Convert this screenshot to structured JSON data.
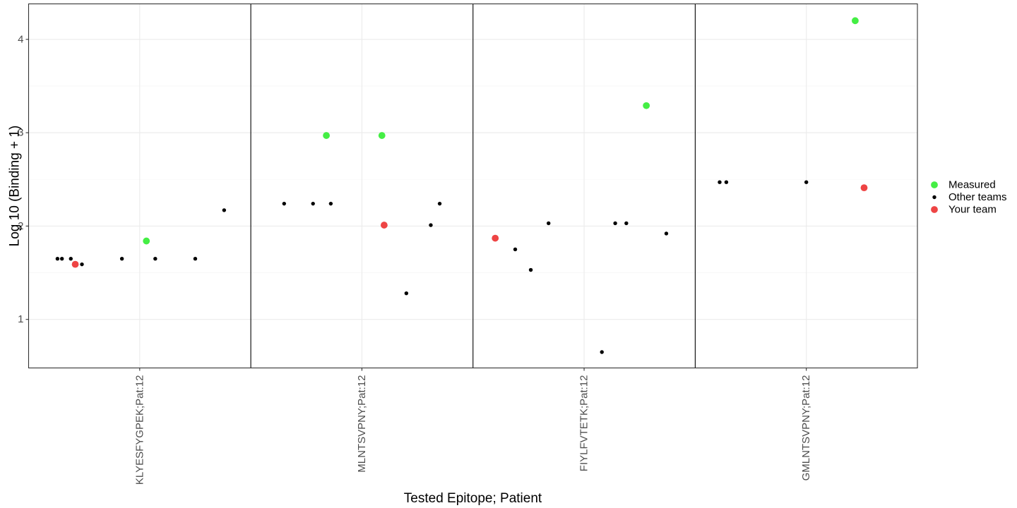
{
  "chart_data": {
    "type": "scatter",
    "xlabel": "Tested Epitope; Patient",
    "ylabel": "Log 10 (Binding + 1)",
    "ylim": [
      0.48,
      4.38
    ],
    "yticks": [
      1,
      2,
      3,
      4
    ],
    "grid": true,
    "legend_position": "right",
    "categories": [
      "KLYESFYGPEK;Pat:12",
      "MLNTSVPNY;Pat:12",
      "FIYLFVTETK;Pat:12",
      "GMLNTSVPNY;Pat:12"
    ],
    "series": [
      {
        "name": "Measured",
        "color": "#44ee44",
        "points": [
          {
            "x": 0.03,
            "y": 1.84
          },
          {
            "x": 0.84,
            "y": 2.97
          },
          {
            "x": 1.09,
            "y": 2.97
          },
          {
            "x": 2.28,
            "y": 3.29
          },
          {
            "x": 3.22,
            "y": 4.2
          }
        ]
      },
      {
        "name": "Other teams",
        "color": "#000000",
        "points": [
          {
            "x": -0.37,
            "y": 1.65
          },
          {
            "x": -0.35,
            "y": 1.65
          },
          {
            "x": -0.31,
            "y": 1.65
          },
          {
            "x": -0.26,
            "y": 1.59
          },
          {
            "x": -0.08,
            "y": 1.65
          },
          {
            "x": 0.07,
            "y": 1.65
          },
          {
            "x": 0.25,
            "y": 1.65
          },
          {
            "x": 0.38,
            "y": 2.17
          },
          {
            "x": 0.65,
            "y": 2.24
          },
          {
            "x": 0.78,
            "y": 2.24
          },
          {
            "x": 0.86,
            "y": 2.24
          },
          {
            "x": 1.2,
            "y": 1.28
          },
          {
            "x": 1.31,
            "y": 2.01
          },
          {
            "x": 1.35,
            "y": 2.24
          },
          {
            "x": 1.69,
            "y": 1.75
          },
          {
            "x": 1.76,
            "y": 1.53
          },
          {
            "x": 1.84,
            "y": 2.03
          },
          {
            "x": 2.08,
            "y": 0.65
          },
          {
            "x": 2.14,
            "y": 2.03
          },
          {
            "x": 2.19,
            "y": 2.03
          },
          {
            "x": 2.37,
            "y": 1.92
          },
          {
            "x": 2.61,
            "y": 2.47
          },
          {
            "x": 2.64,
            "y": 2.47
          },
          {
            "x": 3.0,
            "y": 2.47
          }
        ]
      },
      {
        "name": "Your team",
        "color": "#ee4444",
        "points": [
          {
            "x": -0.29,
            "y": 1.59
          },
          {
            "x": 1.1,
            "y": 2.01
          },
          {
            "x": 1.6,
            "y": 1.87
          },
          {
            "x": 3.26,
            "y": 2.41
          }
        ]
      }
    ]
  }
}
